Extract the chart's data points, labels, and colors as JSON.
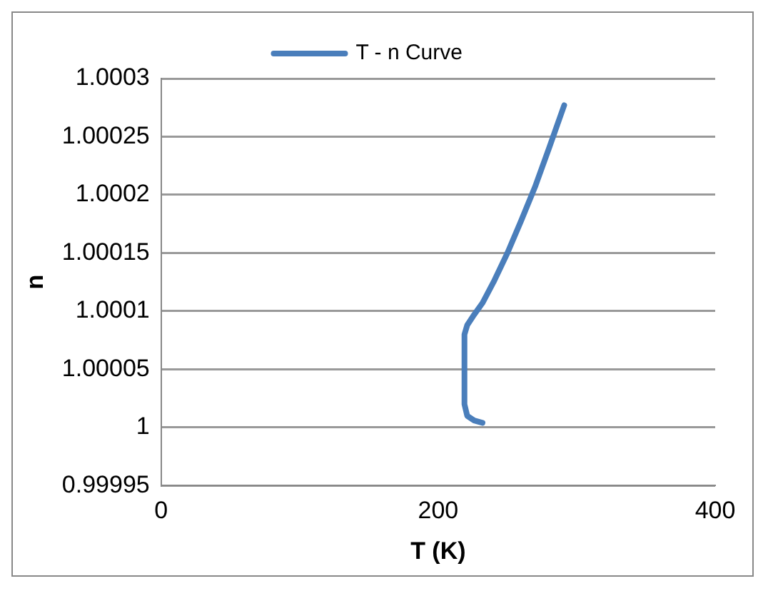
{
  "chart_data": {
    "type": "line",
    "xlabel": "T (K)",
    "ylabel": "n",
    "xlim": [
      0,
      400
    ],
    "xticks": [
      0,
      200,
      400
    ],
    "ylim": [
      0.99995,
      1.0003
    ],
    "yticks": [
      0.99995,
      1,
      1.00005,
      1.0001,
      1.00015,
      1.0002,
      1.00025,
      1.0003
    ],
    "grid": "y",
    "legend": "top",
    "marker": "none",
    "line_style": "solid",
    "series": [
      {
        "name": "T - n Curve",
        "color": "#4a7ebb",
        "x": [
          232,
          226,
          221,
          219,
          219,
          221,
          226,
          232,
          240,
          250,
          260,
          270,
          280,
          291
        ],
        "values": [
          1.000004,
          1.000006,
          1.00001,
          1.00002,
          1.00008,
          1.000088,
          1.000097,
          1.000107,
          1.000125,
          1.00015,
          1.000178,
          1.000207,
          1.00024,
          1.000277
        ]
      }
    ]
  }
}
